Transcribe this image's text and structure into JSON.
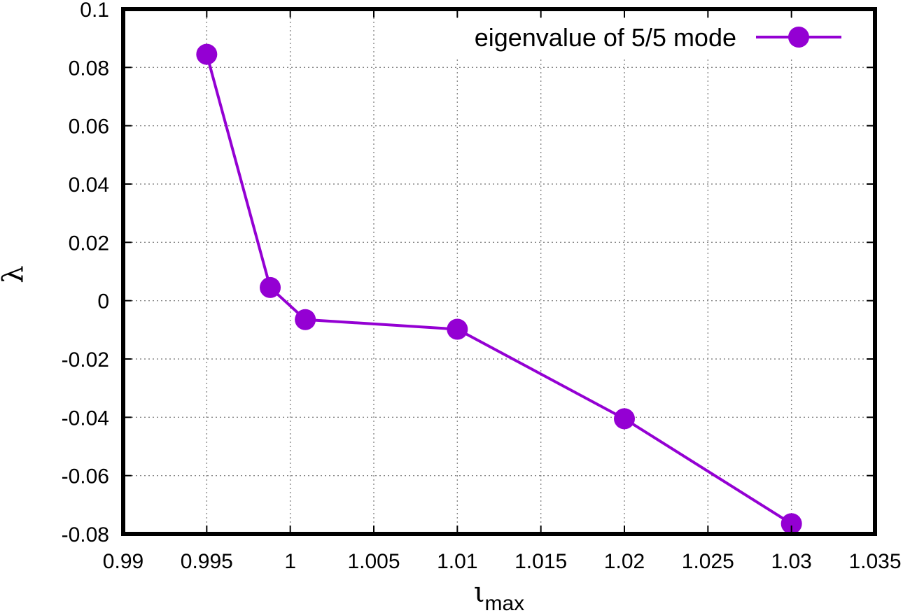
{
  "chart_data": {
    "type": "line",
    "xlabel": "ι",
    "xlabel_subscript": "max",
    "ylabel": "λ",
    "xlim": [
      0.99,
      1.035
    ],
    "ylim": [
      -0.08,
      0.1
    ],
    "xticks": [
      0.99,
      0.995,
      1,
      1.005,
      1.01,
      1.015,
      1.02,
      1.025,
      1.03,
      1.035
    ],
    "xtick_labels": [
      "0.99",
      "0.995",
      "1",
      "1.005",
      "1.01",
      "1.015",
      "1.02",
      "1.025",
      "1.03",
      "1.035"
    ],
    "yticks": [
      -0.08,
      -0.06,
      -0.04,
      -0.02,
      0,
      0.02,
      0.04,
      0.06,
      0.08,
      0.1
    ],
    "ytick_labels": [
      "-0.08",
      "-0.06",
      "-0.04",
      "-0.02",
      "0",
      "0.02",
      "0.04",
      "0.06",
      "0.08",
      "0.1"
    ],
    "grid": true,
    "legend_position": "top-right",
    "series": [
      {
        "name": "eigenvalue of 5/5 mode",
        "color": "#9400d3",
        "marker": "circle",
        "x": [
          0.995,
          0.9988,
          1.0009,
          1.01,
          1.02,
          1.03
        ],
        "y": [
          0.0845,
          0.0045,
          -0.0065,
          -0.0098,
          -0.0405,
          -0.0765
        ]
      }
    ]
  }
}
